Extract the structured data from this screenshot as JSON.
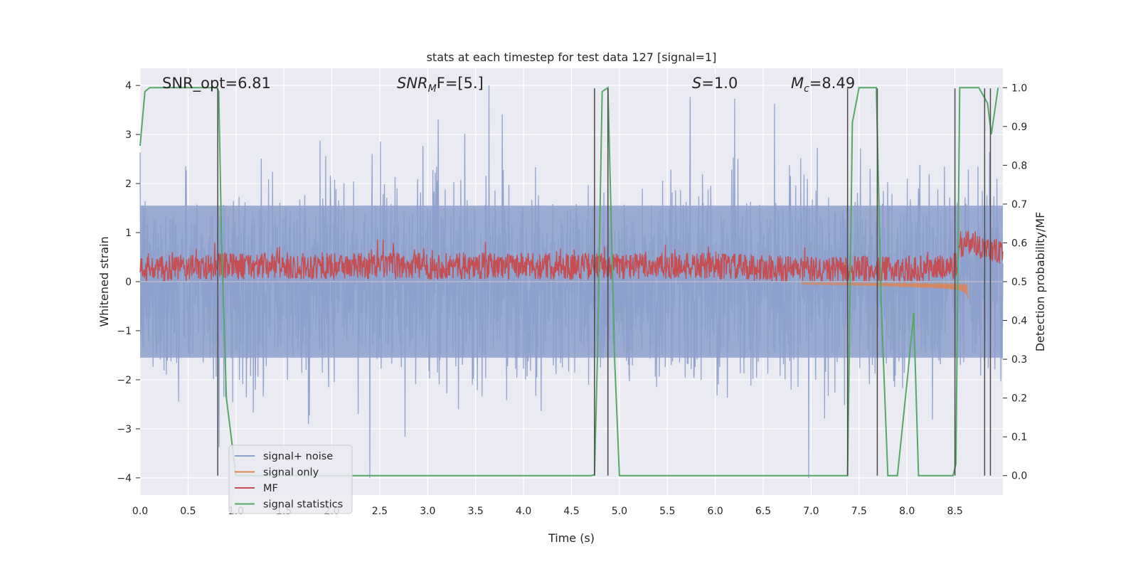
{
  "chart_data": {
    "type": "line",
    "title": "stats at each timestep for test data 127 [signal=1]",
    "xlabel": "Time (s)",
    "ylabel": "Whitened strain",
    "y2label": "Detection probability/MF",
    "xlim": [
      0.0,
      9.0
    ],
    "ylim": [
      -4.35,
      4.35
    ],
    "y2lim": [
      -0.05,
      1.05
    ],
    "xticks": [
      "0.0",
      "0.5",
      "1.0",
      "1.5",
      "2.0",
      "2.5",
      "3.0",
      "3.5",
      "4.0",
      "4.5",
      "5.0",
      "5.5",
      "6.0",
      "6.5",
      "7.0",
      "7.5",
      "8.0",
      "8.5"
    ],
    "yticks": [
      "4",
      "3",
      "2",
      "1",
      "0",
      "−1",
      "−2",
      "−3",
      "−4"
    ],
    "y2ticks": [
      "1.0",
      "0.9",
      "0.8",
      "0.7",
      "0.6",
      "0.5",
      "0.4",
      "0.3",
      "0.2",
      "0.1",
      "0.0"
    ],
    "grid": true,
    "legend_position": "lower-left",
    "annotations": {
      "snr_opt": "SNR_opt=6.81",
      "snr_mf_main": "SNR",
      "snr_mf_sub": "M",
      "snr_mf_tail": "F=[5.]",
      "s_main": "S",
      "s_tail": "=1.0",
      "mc_main": "M",
      "mc_sub": "c",
      "mc_tail": "=8.49"
    },
    "colors": {
      "signal_noise": "#8da0cb",
      "signal_only": "#dd8452",
      "mf": "#c44e52",
      "signal_statistics": "#55a868",
      "event_line": "#4a4a4a",
      "plot_bg": "#eaeaf2"
    },
    "series": [
      {
        "name": "signal+ noise",
        "style": "noise band, roughly ±2 strain with spikes to ±4 over t = 0 to 9 s"
      },
      {
        "name": "signal only",
        "style": "chirp, growing amplitude from t ≈ 6.9 s, ending at t ≈ 8.64 s"
      },
      {
        "name": "MF",
        "axis": "right",
        "style": "noisy band about 0.5 to 0.62 on the right axis across t = 0 to 9 s",
        "x": [
          0.0,
          1.0,
          2.0,
          3.0,
          4.0,
          5.0,
          6.0,
          7.0,
          8.0,
          8.5,
          8.6,
          9.0
        ],
        "y": [
          0.53,
          0.54,
          0.54,
          0.54,
          0.54,
          0.54,
          0.54,
          0.53,
          0.53,
          0.54,
          0.61,
          0.57
        ]
      },
      {
        "name": "signal statistics",
        "axis": "right",
        "x": [
          0.0,
          0.05,
          0.1,
          0.2,
          0.8,
          0.82,
          0.85,
          0.9,
          1.0,
          1.2,
          1.5,
          2.0,
          3.0,
          4.0,
          4.7,
          4.74,
          4.77,
          4.82,
          4.88,
          4.95,
          5.0,
          7.3,
          7.38,
          7.43,
          7.5,
          7.68,
          7.73,
          7.8,
          7.9,
          8.0,
          8.07,
          8.12,
          8.2,
          8.48,
          8.51,
          8.55,
          8.6,
          8.75,
          8.84,
          8.88,
          8.95
        ],
        "y": [
          0.85,
          0.99,
          1.0,
          1.0,
          1.0,
          0.99,
          0.6,
          0.2,
          0.0,
          0.0,
          0.0,
          0.0,
          0.0,
          0.0,
          0.0,
          0.002,
          0.3,
          0.99,
          1.0,
          0.3,
          0.0,
          0.0,
          0.0,
          0.91,
          1.0,
          1.0,
          0.45,
          0.0,
          0.0,
          0.24,
          0.42,
          0.0,
          0.0,
          0.0,
          0.03,
          1.0,
          1.0,
          1.0,
          0.96,
          0.88,
          1.0
        ]
      }
    ],
    "event_lines_x": [
      0.81,
      4.74,
      4.88,
      7.38,
      7.69,
      8.5,
      8.81,
      8.87
    ]
  },
  "legend": {
    "items": [
      {
        "label": "signal+ noise",
        "color": "#8da0cb"
      },
      {
        "label": "signal only",
        "color": "#dd8452"
      },
      {
        "label": "MF",
        "color": "#c44e52"
      },
      {
        "label": "signal statistics",
        "color": "#55a868"
      }
    ]
  }
}
